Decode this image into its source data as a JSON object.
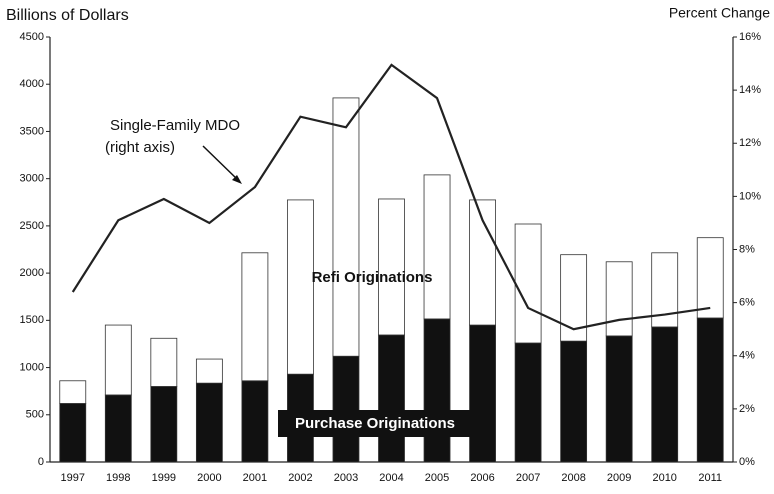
{
  "chart_data": {
    "type": "bar",
    "stacked": true,
    "y_label": "Billions of Dollars",
    "y2_label": "Percent Change",
    "categories": [
      "1997",
      "1998",
      "1999",
      "2000",
      "2001",
      "2002",
      "2003",
      "2004",
      "2005",
      "2006",
      "2007",
      "2008",
      "2009",
      "2010",
      "2011"
    ],
    "series": [
      {
        "name": "Purchase Originations",
        "color": "#111111",
        "values": [
          620,
          710,
          800,
          835,
          860,
          930,
          1120,
          1345,
          1515,
          1450,
          1260,
          1280,
          1335,
          1430,
          1525
        ]
      },
      {
        "name": "Refi Originations",
        "color": "#ffffff",
        "values": [
          240,
          740,
          510,
          255,
          1355,
          1845,
          2735,
          1440,
          1525,
          1325,
          1260,
          915,
          785,
          785,
          850
        ]
      },
      {
        "name": "Single-Family MDO",
        "type": "line",
        "axis": "y2",
        "color": "#222222",
        "values": [
          6.4,
          9.1,
          9.9,
          9.0,
          10.35,
          13.0,
          12.6,
          14.95,
          13.7,
          9.1,
          5.8,
          5.0,
          5.35,
          5.55,
          5.8
        ]
      }
    ],
    "annotations": [
      "(right axis)"
    ],
    "ylim": [
      0,
      4500
    ],
    "yticks": [
      0,
      500,
      1000,
      1500,
      2000,
      2500,
      3000,
      3500,
      4000,
      4500
    ],
    "y2lim": [
      0,
      16
    ],
    "y2ticks": [
      {
        "value": 0,
        "label": "0%"
      },
      {
        "value": 2,
        "label": "2%"
      },
      {
        "value": 4,
        "label": "4%"
      },
      {
        "value": 6,
        "label": "6%"
      },
      {
        "value": 8,
        "label": "8%"
      },
      {
        "value": 10,
        "label": "10%"
      },
      {
        "value": 12,
        "label": "12%"
      },
      {
        "value": 14,
        "label": "14%"
      },
      {
        "value": 16,
        "label": "16%"
      }
    ],
    "grid": false
  }
}
